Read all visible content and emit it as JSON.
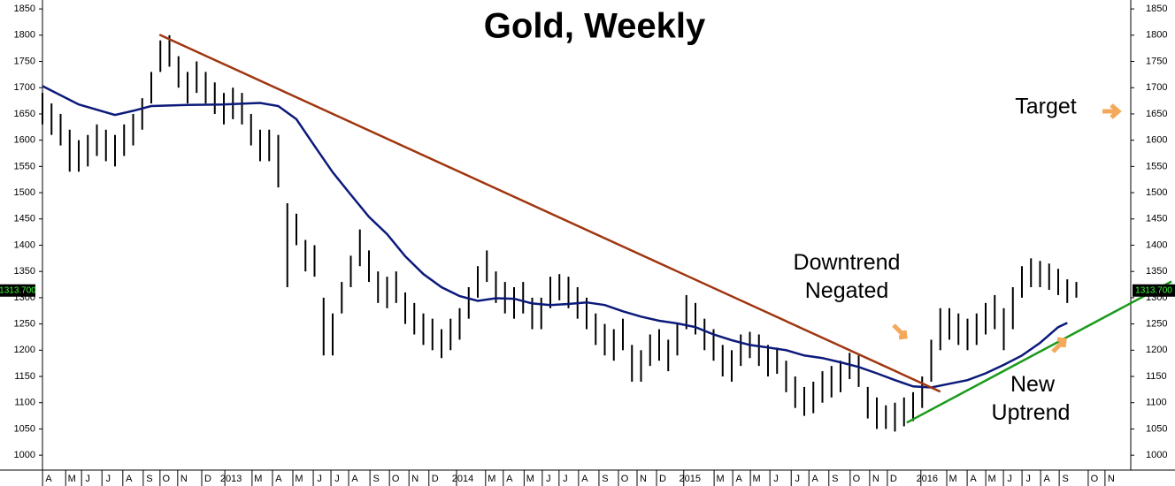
{
  "chart_data": {
    "type": "ohlc",
    "title": "Gold, Weekly",
    "annotations": [
      "Downtrend Negated",
      "New Uptrend",
      "Target"
    ],
    "last_price": {
      "value": 1313.7,
      "label": "1313.700"
    },
    "xlim": [
      0,
      240
    ],
    "ylim": [
      975,
      1867
    ],
    "yticks": [
      1000,
      1050,
      1100,
      1150,
      1200,
      1250,
      1300,
      1350,
      1400,
      1450,
      1500,
      1550,
      1600,
      1650,
      1700,
      1750,
      1800,
      1850
    ],
    "xticks": [
      {
        "value": 0.8,
        "label": "A"
      },
      {
        "value": 5.9,
        "label": "M"
      },
      {
        "value": 9.4,
        "label": "J"
      },
      {
        "value": 13.9,
        "label": "J"
      },
      {
        "value": 18.5,
        "label": "A"
      },
      {
        "value": 23,
        "label": "S"
      },
      {
        "value": 26.7,
        "label": "O"
      },
      {
        "value": 30.6,
        "label": "N"
      },
      {
        "value": 35.9,
        "label": "D"
      },
      {
        "value": 41,
        "label": "2013"
      },
      {
        "value": 47,
        "label": "M"
      },
      {
        "value": 51.5,
        "label": "A"
      },
      {
        "value": 56,
        "label": "M"
      },
      {
        "value": 60.5,
        "label": "J"
      },
      {
        "value": 64.4,
        "label": "J"
      },
      {
        "value": 68.3,
        "label": "A"
      },
      {
        "value": 73,
        "label": "S"
      },
      {
        "value": 77.3,
        "label": "O"
      },
      {
        "value": 81.6,
        "label": "N"
      },
      {
        "value": 86,
        "label": "D"
      },
      {
        "value": 92.1,
        "label": "2014"
      },
      {
        "value": 98.5,
        "label": "M"
      },
      {
        "value": 102.4,
        "label": "A"
      },
      {
        "value": 107,
        "label": "M"
      },
      {
        "value": 111,
        "label": "J"
      },
      {
        "value": 114.7,
        "label": "J"
      },
      {
        "value": 119,
        "label": "A"
      },
      {
        "value": 123.5,
        "label": "S"
      },
      {
        "value": 127.8,
        "label": "O"
      },
      {
        "value": 131.9,
        "label": "N"
      },
      {
        "value": 136.2,
        "label": "D"
      },
      {
        "value": 142.2,
        "label": "2015"
      },
      {
        "value": 148.9,
        "label": "M"
      },
      {
        "value": 153,
        "label": "A"
      },
      {
        "value": 156.9,
        "label": "M"
      },
      {
        "value": 161.2,
        "label": "J"
      },
      {
        "value": 165.9,
        "label": "J"
      },
      {
        "value": 169.8,
        "label": "A"
      },
      {
        "value": 174.2,
        "label": "S"
      },
      {
        "value": 178.9,
        "label": "O"
      },
      {
        "value": 183.2,
        "label": "N"
      },
      {
        "value": 187.1,
        "label": "D"
      },
      {
        "value": 194.5,
        "label": "2016"
      },
      {
        "value": 200.2,
        "label": "M"
      },
      {
        "value": 204.7,
        "label": "A"
      },
      {
        "value": 208.8,
        "label": "M"
      },
      {
        "value": 212.7,
        "label": "J"
      },
      {
        "value": 216.8,
        "label": "J"
      },
      {
        "value": 220.9,
        "label": "A"
      },
      {
        "value": 225,
        "label": "S"
      },
      {
        "value": 231.4,
        "label": "O"
      },
      {
        "value": 235.1,
        "label": "N"
      }
    ],
    "price": {
      "color": "#000000",
      "x": [
        0,
        2,
        4,
        6,
        8,
        10,
        12,
        14,
        16,
        18,
        20,
        22,
        24,
        26,
        28,
        30,
        32,
        34,
        36,
        38,
        40,
        42,
        44,
        46,
        48,
        50,
        52,
        54,
        56,
        58,
        60,
        62,
        64,
        66,
        68,
        70,
        72,
        74,
        76,
        78,
        80,
        82,
        84,
        86,
        88,
        90,
        92,
        94,
        96,
        98,
        100,
        102,
        104,
        106,
        108,
        110,
        112,
        114,
        116,
        118,
        120,
        122,
        124,
        126,
        128,
        130,
        132,
        134,
        136,
        138,
        140,
        142,
        144,
        146,
        148,
        150,
        152,
        154,
        156,
        158,
        160,
        162,
        164,
        166,
        168,
        170,
        172,
        174,
        176,
        178,
        180,
        182,
        184,
        186,
        188,
        190,
        192,
        194,
        196,
        198,
        200,
        202,
        204,
        206,
        208,
        210,
        212,
        214,
        216,
        218,
        220,
        222,
        224,
        226,
        228
      ],
      "high": [
        1690,
        1670,
        1650,
        1620,
        1600,
        1610,
        1630,
        1620,
        1610,
        1630,
        1650,
        1680,
        1730,
        1790,
        1800,
        1760,
        1730,
        1750,
        1730,
        1710,
        1690,
        1700,
        1690,
        1650,
        1620,
        1620,
        1610,
        1480,
        1460,
        1410,
        1400,
        1300,
        1270,
        1330,
        1380,
        1430,
        1390,
        1350,
        1340,
        1350,
        1310,
        1290,
        1270,
        1260,
        1240,
        1260,
        1280,
        1320,
        1360,
        1390,
        1350,
        1330,
        1320,
        1330,
        1300,
        1300,
        1340,
        1345,
        1340,
        1320,
        1300,
        1270,
        1250,
        1240,
        1260,
        1210,
        1200,
        1230,
        1240,
        1220,
        1250,
        1305,
        1290,
        1260,
        1240,
        1210,
        1200,
        1230,
        1235,
        1230,
        1210,
        1205,
        1180,
        1150,
        1130,
        1140,
        1160,
        1170,
        1180,
        1195,
        1190,
        1130,
        1110,
        1095,
        1100,
        1110,
        1120,
        1150,
        1220,
        1280,
        1280,
        1270,
        1260,
        1270,
        1290,
        1305,
        1280,
        1320,
        1360,
        1375,
        1370,
        1365,
        1355,
        1335,
        1330
      ],
      "low": [
        1630,
        1610,
        1590,
        1540,
        1540,
        1550,
        1570,
        1560,
        1550,
        1570,
        1590,
        1620,
        1670,
        1730,
        1740,
        1700,
        1670,
        1690,
        1670,
        1650,
        1630,
        1640,
        1630,
        1590,
        1560,
        1560,
        1510,
        1320,
        1400,
        1350,
        1340,
        1190,
        1190,
        1270,
        1320,
        1360,
        1330,
        1290,
        1280,
        1290,
        1250,
        1230,
        1210,
        1200,
        1185,
        1200,
        1220,
        1260,
        1300,
        1330,
        1290,
        1270,
        1260,
        1270,
        1240,
        1240,
        1280,
        1295,
        1280,
        1260,
        1240,
        1210,
        1190,
        1180,
        1200,
        1140,
        1140,
        1170,
        1180,
        1160,
        1190,
        1240,
        1230,
        1200,
        1180,
        1150,
        1140,
        1170,
        1185,
        1170,
        1150,
        1155,
        1120,
        1090,
        1075,
        1080,
        1100,
        1110,
        1120,
        1145,
        1130,
        1070,
        1050,
        1050,
        1045,
        1055,
        1065,
        1090,
        1140,
        1200,
        1220,
        1210,
        1200,
        1210,
        1230,
        1240,
        1200,
        1240,
        1300,
        1320,
        1320,
        1315,
        1305,
        1290,
        1300
      ]
    },
    "moving_average": {
      "color": "#0b1a7a",
      "x": [
        0,
        8,
        16,
        20,
        24,
        32,
        40,
        48,
        52,
        56,
        60,
        64,
        68,
        72,
        76,
        80,
        84,
        88,
        92,
        96,
        100,
        104,
        108,
        112,
        116,
        120,
        124,
        128,
        132,
        136,
        140,
        144,
        148,
        152,
        156,
        160,
        164,
        168,
        172,
        176,
        180,
        184,
        188,
        192,
        196,
        200,
        204,
        208,
        212,
        216,
        220,
        224,
        226
      ],
      "values": [
        1703,
        1668,
        1648,
        1656,
        1665,
        1667,
        1668,
        1671,
        1665,
        1640,
        1589,
        1539,
        1496,
        1454,
        1421,
        1379,
        1345,
        1320,
        1303,
        1294,
        1299,
        1298,
        1289,
        1286,
        1288,
        1291,
        1286,
        1274,
        1264,
        1256,
        1251,
        1244,
        1230,
        1219,
        1210,
        1205,
        1200,
        1190,
        1185,
        1177,
        1168,
        1156,
        1143,
        1131,
        1129,
        1136,
        1143,
        1156,
        1172,
        1190,
        1214,
        1244,
        1252
      ]
    },
    "trendlines": [
      {
        "color": "#a0360f",
        "x": [
          25.8,
          198
        ],
        "values": [
          1801,
          1121
        ]
      },
      {
        "color": "#1a9a1a",
        "x": [
          190.6,
          249
        ],
        "values": [
          1062,
          1331
        ]
      }
    ]
  }
}
